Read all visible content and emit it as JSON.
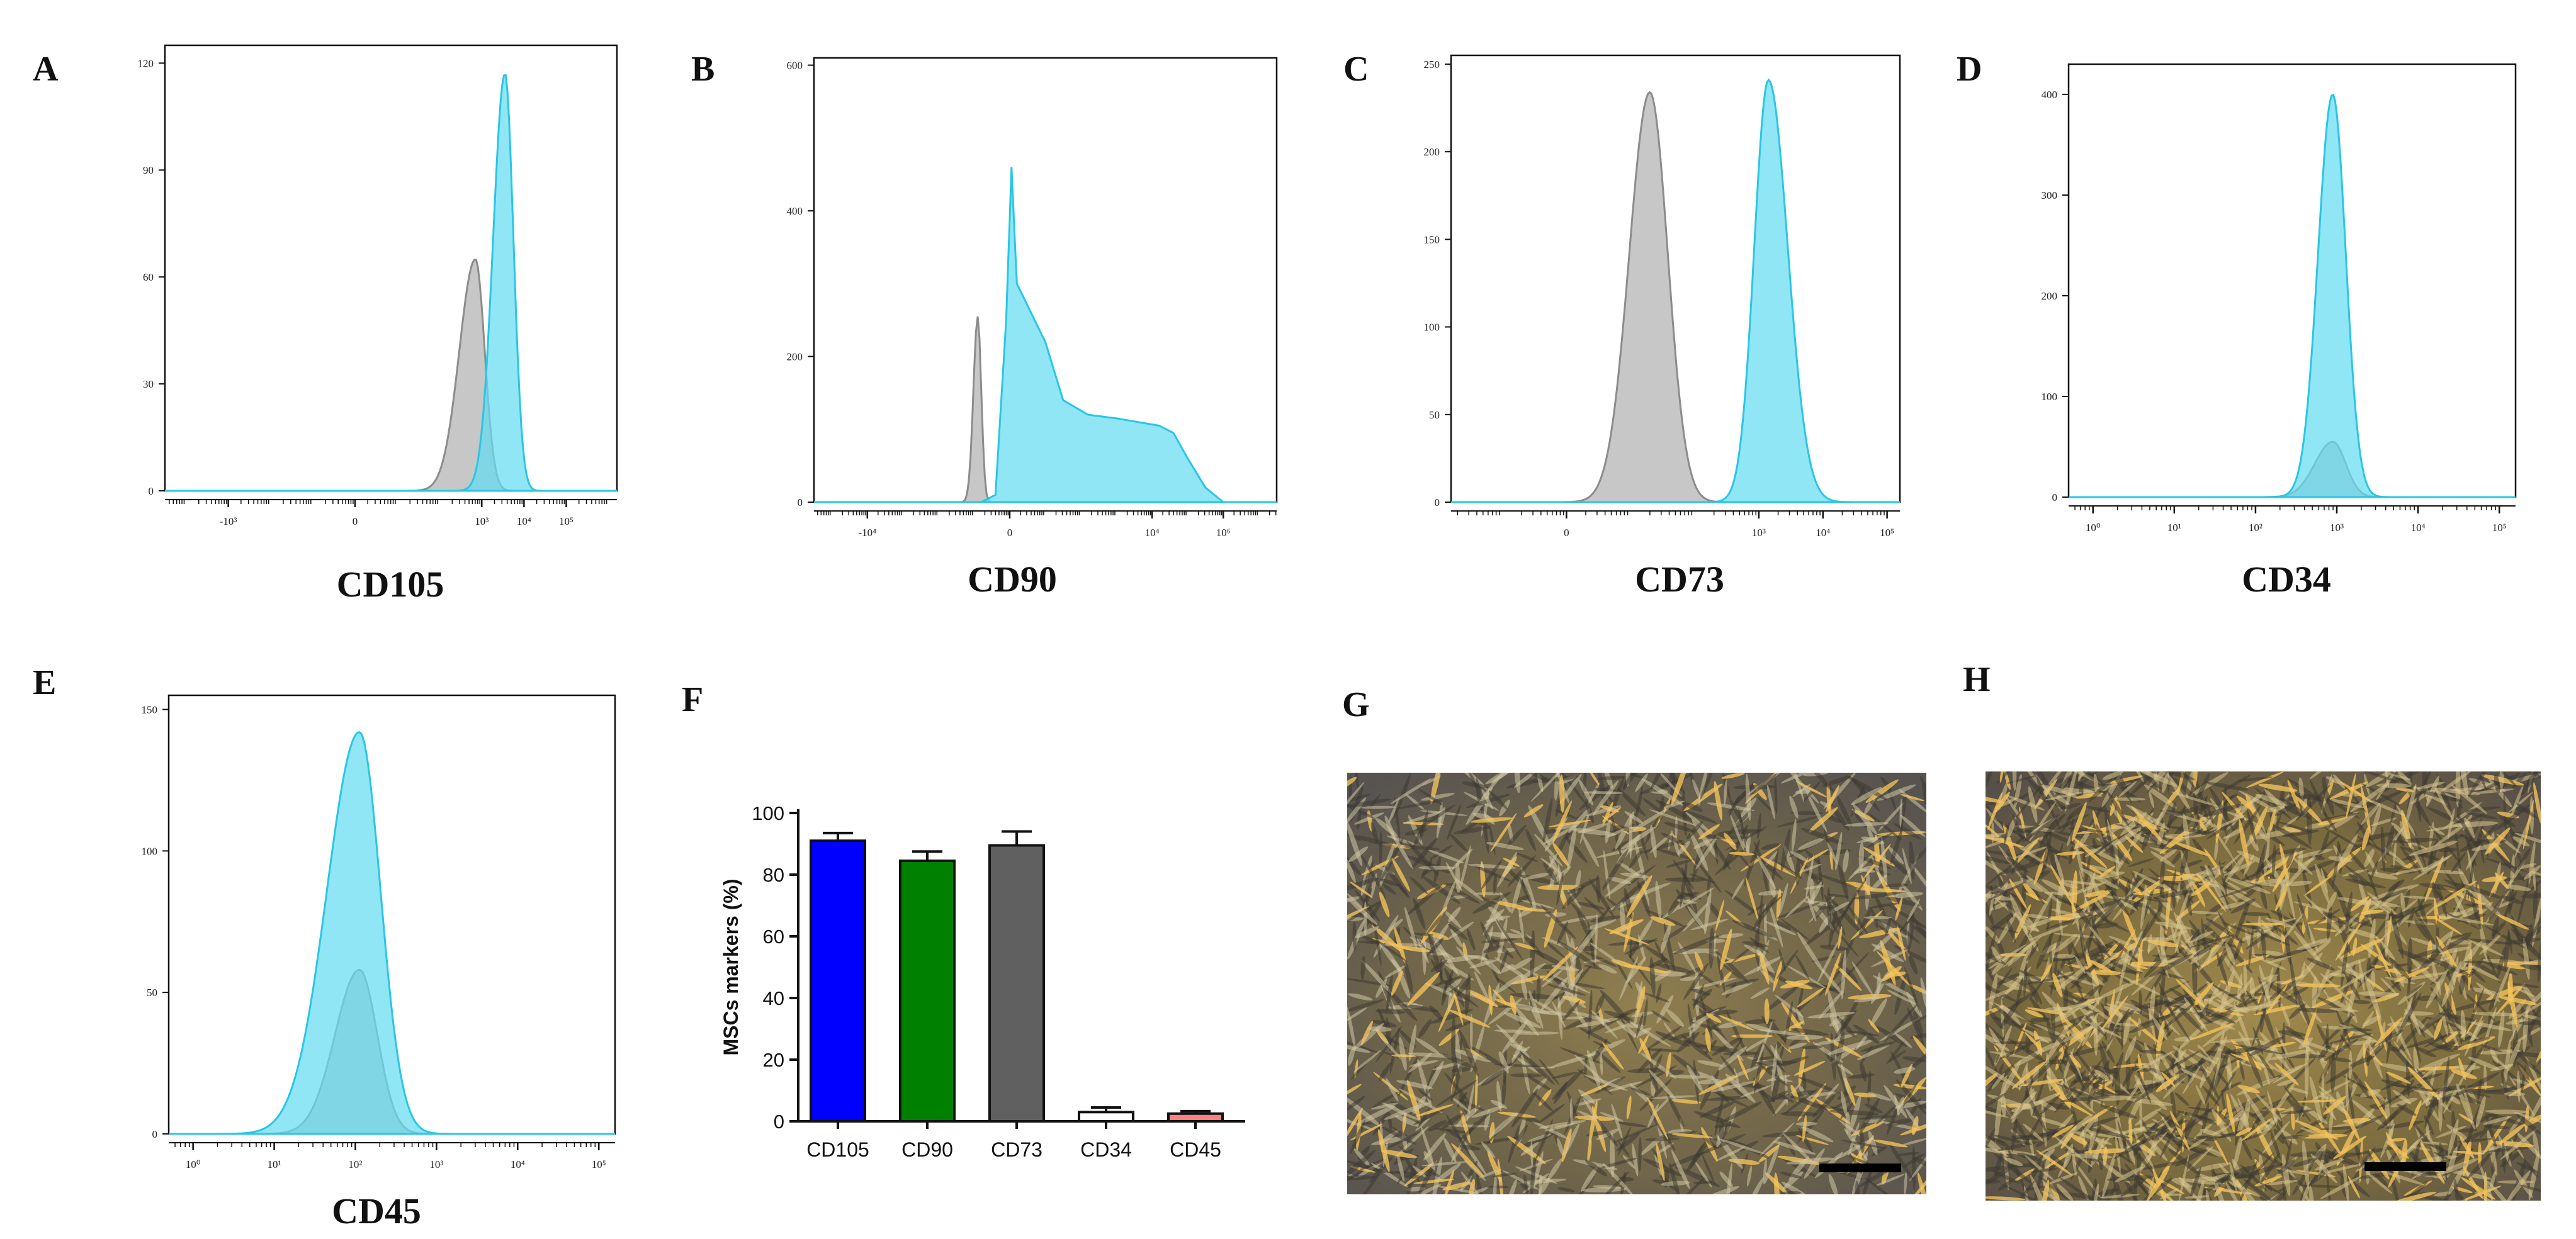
{
  "colors": {
    "positive_fill": "#66dcf1",
    "positive_line": "#29c6e6",
    "control_fill": "#bdbdbd",
    "control_line": "#8c8c8c",
    "overlap_fill": "#5da8b8",
    "axis": "#111111"
  },
  "photos": {
    "G": {
      "letter": "G",
      "description_icon": "microscopy-image-sparse-cells",
      "scale_bar": true
    },
    "H": {
      "letter": "H",
      "description_icon": "microscopy-image-dense-cells",
      "scale_bar": true
    }
  },
  "chart_data": [
    {
      "id": "A",
      "type": "area",
      "letter": "A",
      "xlabel": "CD105",
      "x_scale": "biexponential",
      "xticks": [
        "-10³",
        "0",
        "10³",
        "10⁴",
        "10⁵"
      ],
      "xtick_positions": [
        -3,
        0,
        3,
        4,
        5
      ],
      "xlim": [
        -4.5,
        6.2
      ],
      "ylim": [
        0,
        125
      ],
      "yticks": [
        0,
        30,
        60,
        90,
        120
      ],
      "series": [
        {
          "name": "control",
          "peak_x": 2.85,
          "peak_y": 65,
          "width_left": 0.38,
          "width_right": 0.22
        },
        {
          "name": "CD105",
          "peak_x": 3.55,
          "peak_y": 117,
          "width_left": 0.28,
          "width_right": 0.2
        }
      ]
    },
    {
      "id": "B",
      "type": "area",
      "letter": "B",
      "xlabel": "CD90",
      "x_scale": "biexponential",
      "xticks": [
        "-10⁴",
        "0",
        "10⁴",
        "10⁶"
      ],
      "xtick_positions": [
        -4,
        0,
        4,
        6
      ],
      "xlim": [
        -5.5,
        7.5
      ],
      "ylim": [
        0,
        610
      ],
      "yticks": [
        0,
        200,
        400,
        600
      ],
      "series": [
        {
          "name": "control",
          "peak_x": -0.9,
          "peak_y": 255,
          "width_left": 0.12,
          "width_right": 0.1
        },
        {
          "name": "CD90",
          "points": [
            [
              -0.8,
              0
            ],
            [
              -0.4,
              10
            ],
            [
              -0.1,
              250
            ],
            [
              0.05,
              460
            ],
            [
              0.2,
              300
            ],
            [
              0.6,
              260
            ],
            [
              1.0,
              220
            ],
            [
              1.5,
              140
            ],
            [
              2.2,
              120
            ],
            [
              3.0,
              115
            ],
            [
              3.6,
              110
            ],
            [
              4.2,
              105
            ],
            [
              4.6,
              95
            ],
            [
              5.0,
              60
            ],
            [
              5.5,
              20
            ],
            [
              6.0,
              0
            ]
          ]
        }
      ]
    },
    {
      "id": "C",
      "type": "area",
      "letter": "C",
      "xlabel": "CD73",
      "x_scale": "biexponential",
      "xticks": [
        "0",
        "10³",
        "10⁴",
        "10⁵"
      ],
      "xtick_positions": [
        0,
        3,
        4,
        5
      ],
      "xlim": [
        -1.8,
        5.2
      ],
      "ylim": [
        0,
        255
      ],
      "yticks": [
        0,
        50,
        100,
        150,
        200,
        250
      ],
      "series": [
        {
          "name": "control",
          "peak_x": 1.3,
          "peak_y": 234,
          "width_left": 0.32,
          "width_right": 0.28
        },
        {
          "name": "CD73",
          "peak_x": 3.15,
          "peak_y": 241,
          "width_left": 0.22,
          "width_right": 0.3
        }
      ]
    },
    {
      "id": "D",
      "type": "area",
      "letter": "D",
      "xlabel": "CD34",
      "x_scale": "log",
      "xticks": [
        "10⁰",
        "10¹",
        "10²",
        "10³",
        "10⁴",
        "10⁵"
      ],
      "xtick_positions": [
        0,
        1,
        2,
        3,
        4,
        5
      ],
      "xlim": [
        -0.3,
        5.2
      ],
      "ylim": [
        0,
        430
      ],
      "yticks": [
        0,
        100,
        200,
        300,
        400
      ],
      "series": [
        {
          "name": "control",
          "peak_x": 2.95,
          "peak_y": 55,
          "width_left": 0.22,
          "width_right": 0.16
        },
        {
          "name": "CD34",
          "peak_x": 2.95,
          "peak_y": 400,
          "width_left": 0.18,
          "width_right": 0.16
        }
      ]
    },
    {
      "id": "E",
      "type": "area",
      "letter": "E",
      "xlabel": "CD45",
      "x_scale": "log",
      "xticks": [
        "10⁰",
        "10¹",
        "10²",
        "10³",
        "10⁴",
        "10⁵"
      ],
      "xtick_positions": [
        0,
        1,
        2,
        3,
        4,
        5
      ],
      "xlim": [
        -0.3,
        5.2
      ],
      "ylim": [
        0,
        155
      ],
      "yticks": [
        0,
        50,
        100,
        150
      ],
      "series": [
        {
          "name": "control",
          "peak_x": 2.05,
          "peak_y": 58,
          "width_left": 0.3,
          "width_right": 0.22
        },
        {
          "name": "CD45",
          "peak_x": 2.05,
          "peak_y": 142,
          "width_left": 0.4,
          "width_right": 0.26
        }
      ]
    },
    {
      "id": "F",
      "type": "bar",
      "letter": "F",
      "ylabel": "MSCs markers (%)",
      "ylim": [
        0,
        100
      ],
      "yticks": [
        0,
        20,
        40,
        60,
        80,
        100
      ],
      "categories": [
        "CD105",
        "CD90",
        "CD73",
        "CD34",
        "CD45"
      ],
      "values": [
        91,
        84.5,
        89.5,
        3,
        2.5
      ],
      "errors": [
        2.5,
        3,
        4.5,
        1.5,
        0.8
      ],
      "bar_colors": [
        "#0000ff",
        "#008000",
        "#606060",
        "#ffffff",
        "#ff8080"
      ]
    }
  ]
}
